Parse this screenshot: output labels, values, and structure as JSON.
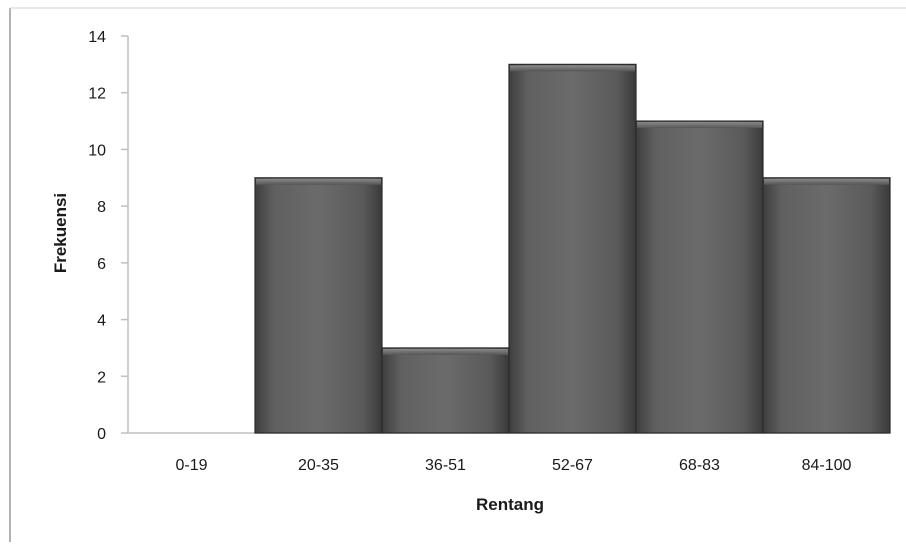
{
  "chart_data": {
    "type": "bar",
    "title": "",
    "xlabel": "Rentang",
    "ylabel": "Frekuensi",
    "categories": [
      "0-19",
      "20-35",
      "36-51",
      "52-67",
      "68-83",
      "84-100"
    ],
    "values": [
      0,
      9,
      3,
      13,
      11,
      9
    ],
    "ylim": [
      0,
      14
    ],
    "yticks": [
      "0",
      "2",
      "4",
      "6",
      "8",
      "10",
      "12",
      "14"
    ],
    "grid": false,
    "legend": "none",
    "colors": {
      "bar": "#555555",
      "bar_highlight": "#6e6e6e",
      "bar_edge": "#2b2b2b",
      "axis": "#bfbfbf"
    }
  }
}
